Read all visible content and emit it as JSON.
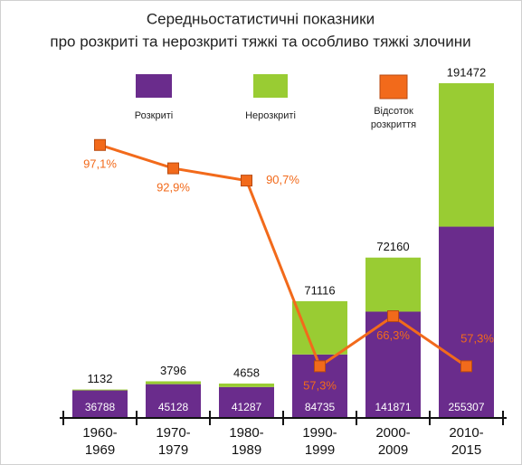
{
  "chart_data": {
    "type": "bar",
    "title": [
      "Середньостатистичні показники",
      "про розкриті та нерозкриті тяжкі та особливо тяжкі злочини"
    ],
    "categories": [
      "1960-1969",
      "1970-1979",
      "1980-1989",
      "1990-1999",
      "2000-2009",
      "2010-2015"
    ],
    "stacked": true,
    "ylim": [
      0,
      460000
    ],
    "y2lim": [
      48,
      110
    ],
    "series": [
      {
        "name": "Розкриті",
        "type": "bar",
        "color": "#6a2c8c",
        "values": [
          36788,
          45128,
          41287,
          84735,
          141871,
          255307
        ]
      },
      {
        "name": "Нерозкриті",
        "type": "bar",
        "color": "#99cc33",
        "values": [
          1132,
          3796,
          4658,
          71116,
          72160,
          191472
        ]
      },
      {
        "name": "Відсоток розкриття",
        "type": "line",
        "axis": "y2",
        "color": "#f26a1b",
        "values": [
          97.1,
          92.9,
          90.7,
          57.3,
          66.3,
          57.3
        ],
        "value_labels": [
          "97,1%",
          "92,9%",
          "90,7%",
          "57,3%",
          "66,3%",
          "57,3%"
        ]
      }
    ],
    "legend": "top"
  }
}
